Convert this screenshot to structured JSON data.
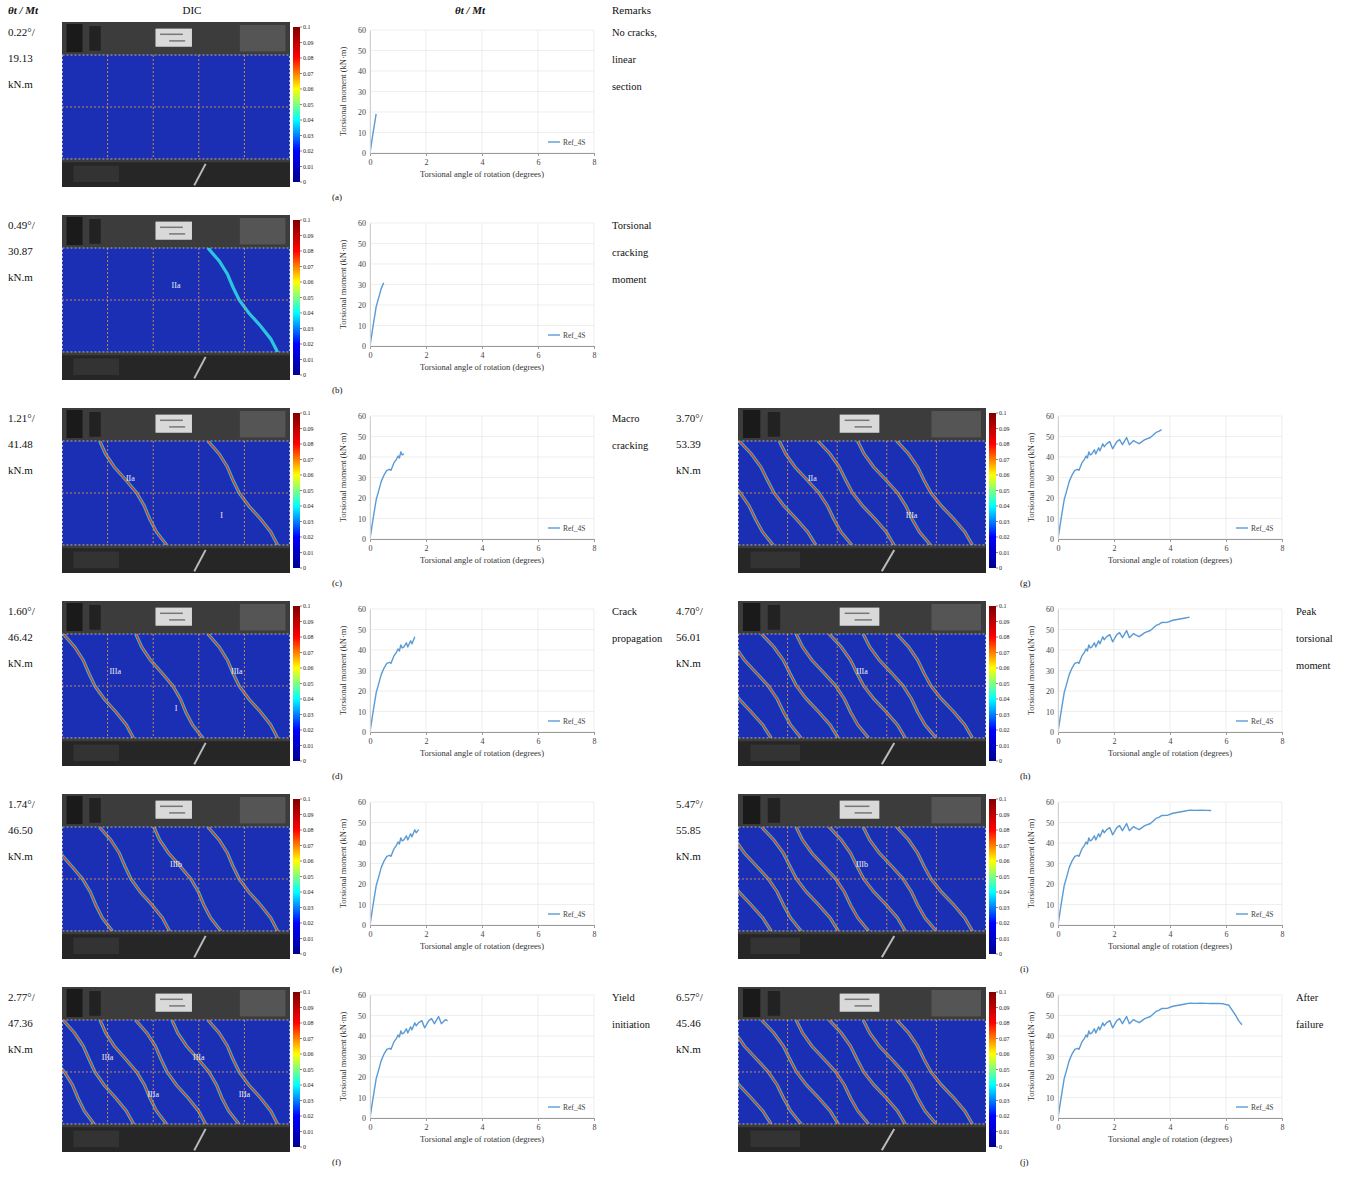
{
  "headers": [
    "θt / Mt",
    "DIC",
    "θt / Mt",
    "Remarks"
  ],
  "chart_data": [
    {
      "type": "line",
      "panel": "(a)",
      "angle_label": "0.22°/",
      "moment_label": "19.13",
      "unit_label": "kN.m",
      "remark": "No cracks, linear section",
      "xlabel": "Torsional angle of rotation (degrees)",
      "ylabel": "Torsional moment (kN·m)",
      "xlim": [
        0,
        8
      ],
      "ylim": [
        0,
        60
      ],
      "xticks": [
        0,
        2,
        4,
        6,
        8
      ],
      "yticks": [
        0,
        10,
        20,
        30,
        40,
        50,
        60
      ],
      "grid": true,
      "legend": "lower right",
      "x": [
        0,
        0.1,
        0.22
      ],
      "series": [
        {
          "name": "Ref_4S",
          "color": "#5b9bd5",
          "values": [
            0,
            9,
            19.13
          ]
        }
      ],
      "colorbar_range": [
        0,
        0.1
      ],
      "colorbar_ticks": [
        0,
        0.01,
        0.02,
        0.03,
        0.04,
        0.05,
        0.06,
        0.07,
        0.08,
        0.09,
        0.1
      ]
    },
    {
      "type": "line",
      "panel": "(b)",
      "angle_label": "0.49°/",
      "moment_label": "30.87",
      "unit_label": "kN.m",
      "remark": "Torsional cracking moment",
      "xlabel": "Torsional angle of rotation (degrees)",
      "ylabel": "Torsional moment (kN·m)",
      "xlim": [
        0,
        8
      ],
      "ylim": [
        0,
        60
      ],
      "xticks": [
        0,
        2,
        4,
        6,
        8
      ],
      "yticks": [
        0,
        10,
        20,
        30,
        40,
        50,
        60
      ],
      "grid": true,
      "legend": "lower right",
      "x": [
        0,
        0.1,
        0.22,
        0.3,
        0.4,
        0.49
      ],
      "series": [
        {
          "name": "Ref_4S",
          "color": "#5b9bd5",
          "values": [
            0,
            9,
            19.13,
            23,
            28,
            30.87
          ]
        }
      ],
      "colorbar_range": [
        0,
        0.1
      ],
      "colorbar_ticks": [
        0,
        0.01,
        0.02,
        0.03,
        0.04,
        0.05,
        0.06,
        0.07,
        0.08,
        0.09,
        0.1
      ],
      "crack_labels": [
        "IIa"
      ]
    },
    {
      "type": "line",
      "panel": "(c)",
      "angle_label": "1.21°/",
      "moment_label": "41.48",
      "unit_label": "kN.m",
      "remark": "Macro cracking",
      "xlabel": "Torsional angle of rotation (degrees)",
      "ylabel": "Torsional moment (kN·m)",
      "xlim": [
        0,
        8
      ],
      "ylim": [
        0,
        60
      ],
      "xticks": [
        0,
        2,
        4,
        6,
        8
      ],
      "yticks": [
        0,
        10,
        20,
        30,
        40,
        50,
        60
      ],
      "grid": true,
      "legend": "lower right",
      "x": [
        0,
        0.1,
        0.22,
        0.3,
        0.4,
        0.49,
        0.6,
        0.7,
        0.75,
        0.85,
        0.95,
        1.0,
        1.05,
        1.1,
        1.15,
        1.21
      ],
      "series": [
        {
          "name": "Ref_4S",
          "color": "#5b9bd5",
          "values": [
            0,
            9,
            19.13,
            23,
            28,
            30.87,
            33.5,
            34,
            33.5,
            37,
            39,
            40.5,
            39.5,
            42.5,
            41,
            41.48
          ]
        }
      ],
      "colorbar_range": [
        0,
        0.1
      ],
      "colorbar_ticks": [
        0,
        0.01,
        0.02,
        0.03,
        0.04,
        0.05,
        0.06,
        0.07,
        0.08,
        0.09,
        0.1
      ],
      "crack_labels": [
        "IIa",
        "I"
      ]
    },
    {
      "type": "line",
      "panel": "(d)",
      "angle_label": "1.60°/",
      "moment_label": "46.42",
      "unit_label": "kN.m",
      "remark": "Crack propagation",
      "xlabel": "Torsional angle of rotation (degrees)",
      "ylabel": "Torsional moment (kN·m)",
      "xlim": [
        0,
        8
      ],
      "ylim": [
        0,
        60
      ],
      "xticks": [
        0,
        2,
        4,
        6,
        8
      ],
      "yticks": [
        0,
        10,
        20,
        30,
        40,
        50,
        60
      ],
      "grid": true,
      "legend": "lower right",
      "x": [
        0,
        0.1,
        0.22,
        0.3,
        0.4,
        0.49,
        0.6,
        0.7,
        0.75,
        0.85,
        0.95,
        1.0,
        1.05,
        1.1,
        1.15,
        1.21,
        1.3,
        1.35,
        1.45,
        1.5,
        1.6
      ],
      "series": [
        {
          "name": "Ref_4S",
          "color": "#5b9bd5",
          "values": [
            0,
            9,
            19.13,
            23,
            28,
            30.87,
            33.5,
            34,
            33.5,
            37,
            39,
            40.5,
            39.5,
            42.5,
            41,
            41.48,
            43.5,
            41.5,
            44.5,
            43,
            46.42
          ]
        }
      ],
      "colorbar_range": [
        0,
        0.1
      ],
      "colorbar_ticks": [
        0,
        0.01,
        0.02,
        0.03,
        0.04,
        0.05,
        0.06,
        0.07,
        0.08,
        0.09,
        0.1
      ],
      "crack_labels": [
        "IIIa",
        "I",
        "IIIa"
      ]
    },
    {
      "type": "line",
      "panel": "(e)",
      "angle_label": "1.74°/",
      "moment_label": "46.50",
      "unit_label": "kN.m",
      "xlabel": "Torsional angle of rotation (degrees)",
      "ylabel": "Torsional moment (kN·m)",
      "xlim": [
        0,
        8
      ],
      "ylim": [
        0,
        60
      ],
      "xticks": [
        0,
        2,
        4,
        6,
        8
      ],
      "yticks": [
        0,
        10,
        20,
        30,
        40,
        50,
        60
      ],
      "grid": true,
      "legend": "lower right",
      "x": [
        0,
        0.1,
        0.22,
        0.3,
        0.4,
        0.49,
        0.6,
        0.7,
        0.75,
        0.85,
        0.95,
        1.0,
        1.05,
        1.1,
        1.15,
        1.21,
        1.3,
        1.35,
        1.45,
        1.5,
        1.6,
        1.65,
        1.74
      ],
      "series": [
        {
          "name": "Ref_4S",
          "color": "#5b9bd5",
          "values": [
            0,
            9,
            19.13,
            23,
            28,
            30.87,
            33.5,
            34,
            33.5,
            37,
            39,
            40.5,
            39.5,
            42.5,
            41,
            41.48,
            43.5,
            41.5,
            44.5,
            43,
            46.42,
            45,
            46.5
          ]
        }
      ],
      "colorbar_range": [
        0,
        0.1
      ],
      "colorbar_ticks": [
        0,
        0.01,
        0.02,
        0.03,
        0.04,
        0.05,
        0.06,
        0.07,
        0.08,
        0.09,
        0.1
      ],
      "crack_labels": [
        "IIIb"
      ]
    },
    {
      "type": "line",
      "panel": "(f)",
      "angle_label": "2.77°/",
      "moment_label": "47.36",
      "unit_label": "kN.m",
      "remark": "Yield initiation",
      "xlabel": "Torsional angle of rotation (degrees)",
      "ylabel": "Torsional moment (kN·m)",
      "xlim": [
        0,
        8
      ],
      "ylim": [
        0,
        60
      ],
      "xticks": [
        0,
        2,
        4,
        6,
        8
      ],
      "yticks": [
        0,
        10,
        20,
        30,
        40,
        50,
        60
      ],
      "grid": true,
      "legend": "lower right",
      "x": [
        0,
        0.1,
        0.22,
        0.3,
        0.4,
        0.49,
        0.6,
        0.7,
        0.75,
        0.85,
        0.95,
        1.0,
        1.05,
        1.1,
        1.15,
        1.21,
        1.3,
        1.35,
        1.45,
        1.5,
        1.6,
        1.65,
        1.74,
        1.85,
        1.95,
        2.1,
        2.2,
        2.3,
        2.45,
        2.55,
        2.7,
        2.77
      ],
      "series": [
        {
          "name": "Ref_4S",
          "color": "#5b9bd5",
          "values": [
            0,
            9,
            19.13,
            23,
            28,
            30.87,
            33.5,
            34,
            33.5,
            37,
            39,
            40.5,
            39.5,
            42.5,
            41,
            41.48,
            43.5,
            41.5,
            44.5,
            43,
            46.42,
            45,
            46.5,
            47.5,
            44,
            47.5,
            48.5,
            46,
            49.5,
            46,
            48,
            47.36
          ]
        }
      ],
      "colorbar_range": [
        0,
        0.1
      ],
      "colorbar_ticks": [
        0,
        0.01,
        0.02,
        0.03,
        0.04,
        0.05,
        0.06,
        0.07,
        0.08,
        0.09,
        0.1
      ],
      "crack_labels": [
        "IIIa",
        "IIIa",
        "IIIa",
        "IIIa"
      ]
    },
    {
      "type": "line",
      "panel": "(g)",
      "angle_label": "3.70°/",
      "moment_label": "53.39",
      "unit_label": "kN.m",
      "xlabel": "Torsional angle of rotation (degrees)",
      "ylabel": "Torsional moment (kN·m)",
      "xlim": [
        0,
        8
      ],
      "ylim": [
        0,
        60
      ],
      "xticks": [
        0,
        2,
        4,
        6,
        8
      ],
      "yticks": [
        0,
        10,
        20,
        30,
        40,
        50,
        60
      ],
      "grid": true,
      "legend": "lower right",
      "x": [
        0,
        0.1,
        0.22,
        0.3,
        0.4,
        0.49,
        0.6,
        0.7,
        0.75,
        0.85,
        0.95,
        1.0,
        1.05,
        1.1,
        1.15,
        1.21,
        1.3,
        1.35,
        1.45,
        1.5,
        1.6,
        1.65,
        1.74,
        1.85,
        1.95,
        2.1,
        2.2,
        2.3,
        2.45,
        2.55,
        2.7,
        2.77,
        2.9,
        3.1,
        3.3,
        3.5,
        3.6,
        3.7
      ],
      "series": [
        {
          "name": "Ref_4S",
          "color": "#5b9bd5",
          "values": [
            0,
            9,
            19.13,
            23,
            28,
            30.87,
            33.5,
            34,
            33.5,
            37,
            39,
            40.5,
            39.5,
            42.5,
            41,
            41.48,
            43.5,
            41.5,
            44.5,
            43,
            46.42,
            45,
            46.5,
            47.5,
            44,
            47.5,
            48.5,
            46,
            49.5,
            46,
            48,
            47.36,
            46.5,
            48.5,
            49.5,
            52,
            52.5,
            53.39
          ]
        }
      ],
      "colorbar_range": [
        0,
        0.1
      ],
      "colorbar_ticks": [
        0,
        0.01,
        0.02,
        0.03,
        0.04,
        0.05,
        0.06,
        0.07,
        0.08,
        0.09,
        0.1
      ],
      "crack_labels": [
        "IIa",
        "IIIa"
      ]
    },
    {
      "type": "line",
      "panel": "(h)",
      "angle_label": "4.70°/",
      "moment_label": "56.01",
      "unit_label": "kN.m",
      "remark": "Peak torsional moment",
      "xlabel": "Torsional angle of rotation (degrees)",
      "ylabel": "Torsional moment (kN·m)",
      "xlim": [
        0,
        8
      ],
      "ylim": [
        0,
        60
      ],
      "xticks": [
        0,
        2,
        4,
        6,
        8
      ],
      "yticks": [
        0,
        10,
        20,
        30,
        40,
        50,
        60
      ],
      "grid": true,
      "legend": "lower right",
      "x": [
        0,
        0.1,
        0.22,
        0.3,
        0.4,
        0.49,
        0.6,
        0.7,
        0.75,
        0.85,
        0.95,
        1.0,
        1.05,
        1.1,
        1.15,
        1.21,
        1.3,
        1.35,
        1.45,
        1.5,
        1.6,
        1.65,
        1.74,
        1.85,
        1.95,
        2.1,
        2.2,
        2.3,
        2.45,
        2.55,
        2.7,
        2.77,
        2.9,
        3.1,
        3.3,
        3.5,
        3.6,
        3.7,
        3.9,
        4.1,
        4.3,
        4.5,
        4.7
      ],
      "series": [
        {
          "name": "Ref_4S",
          "color": "#5b9bd5",
          "values": [
            0,
            9,
            19.13,
            23,
            28,
            30.87,
            33.5,
            34,
            33.5,
            37,
            39,
            40.5,
            39.5,
            42.5,
            41,
            41.48,
            43.5,
            41.5,
            44.5,
            43,
            46.42,
            45,
            46.5,
            47.5,
            44,
            47.5,
            48.5,
            46,
            49.5,
            46,
            48,
            47.36,
            46.5,
            48.5,
            49.5,
            52,
            52.5,
            53.39,
            53.5,
            54.5,
            55,
            55.5,
            56.01
          ]
        }
      ],
      "colorbar_range": [
        0,
        0.1
      ],
      "colorbar_ticks": [
        0,
        0.01,
        0.02,
        0.03,
        0.04,
        0.05,
        0.06,
        0.07,
        0.08,
        0.09,
        0.1
      ],
      "crack_labels": [
        "IIIa"
      ]
    },
    {
      "type": "line",
      "panel": "(i)",
      "angle_label": "5.47°/",
      "moment_label": "55.85",
      "unit_label": "kN.m",
      "xlabel": "Torsional angle of rotation (degrees)",
      "ylabel": "Torsional moment (kN·m)",
      "xlim": [
        0,
        8
      ],
      "ylim": [
        0,
        60
      ],
      "xticks": [
        0,
        2,
        4,
        6,
        8
      ],
      "yticks": [
        0,
        10,
        20,
        30,
        40,
        50,
        60
      ],
      "grid": true,
      "legend": "lower right",
      "x": [
        0,
        0.1,
        0.22,
        0.3,
        0.4,
        0.49,
        0.6,
        0.7,
        0.75,
        0.85,
        0.95,
        1.0,
        1.05,
        1.1,
        1.15,
        1.21,
        1.3,
        1.35,
        1.45,
        1.5,
        1.6,
        1.65,
        1.74,
        1.85,
        1.95,
        2.1,
        2.2,
        2.3,
        2.45,
        2.55,
        2.7,
        2.77,
        2.9,
        3.1,
        3.3,
        3.5,
        3.6,
        3.7,
        3.9,
        4.1,
        4.3,
        4.5,
        4.7,
        4.9,
        5.1,
        5.3,
        5.47
      ],
      "series": [
        {
          "name": "Ref_4S",
          "color": "#5b9bd5",
          "values": [
            0,
            9,
            19.13,
            23,
            28,
            30.87,
            33.5,
            34,
            33.5,
            37,
            39,
            40.5,
            39.5,
            42.5,
            41,
            41.48,
            43.5,
            41.5,
            44.5,
            43,
            46.42,
            45,
            46.5,
            47.5,
            44,
            47.5,
            48.5,
            46,
            49.5,
            46,
            48,
            47.36,
            46.5,
            48.5,
            49.5,
            52,
            52.5,
            53.39,
            53.5,
            54.5,
            55,
            55.5,
            56.01,
            55.9,
            55.95,
            55.9,
            55.85
          ]
        }
      ],
      "colorbar_range": [
        0,
        0.1
      ],
      "colorbar_ticks": [
        0,
        0.01,
        0.02,
        0.03,
        0.04,
        0.05,
        0.06,
        0.07,
        0.08,
        0.09,
        0.1
      ],
      "crack_labels": [
        "IIIb"
      ]
    },
    {
      "type": "line",
      "panel": "(j)",
      "angle_label": "6.57°/",
      "moment_label": "45.46",
      "unit_label": "kN.m",
      "remark": "After failure",
      "xlabel": "Torsional angle of rotation (degrees)",
      "ylabel": "Torsional moment (kN·m)",
      "xlim": [
        0,
        8
      ],
      "ylim": [
        0,
        60
      ],
      "xticks": [
        0,
        2,
        4,
        6,
        8
      ],
      "yticks": [
        0,
        10,
        20,
        30,
        40,
        50,
        60
      ],
      "grid": true,
      "legend": "lower right",
      "x": [
        0,
        0.1,
        0.22,
        0.3,
        0.4,
        0.49,
        0.6,
        0.7,
        0.75,
        0.85,
        0.95,
        1.0,
        1.05,
        1.1,
        1.15,
        1.21,
        1.3,
        1.35,
        1.45,
        1.5,
        1.6,
        1.65,
        1.74,
        1.85,
        1.95,
        2.1,
        2.2,
        2.3,
        2.45,
        2.55,
        2.7,
        2.77,
        2.9,
        3.1,
        3.3,
        3.5,
        3.6,
        3.7,
        3.9,
        4.1,
        4.3,
        4.5,
        4.7,
        4.9,
        5.1,
        5.3,
        5.47,
        5.7,
        5.9,
        6.1,
        6.2,
        6.35,
        6.45,
        6.57
      ],
      "series": [
        {
          "name": "Ref_4S",
          "color": "#5b9bd5",
          "values": [
            0,
            9,
            19.13,
            23,
            28,
            30.87,
            33.5,
            34,
            33.5,
            37,
            39,
            40.5,
            39.5,
            42.5,
            41,
            41.48,
            43.5,
            41.5,
            44.5,
            43,
            46.42,
            45,
            46.5,
            47.5,
            44,
            47.5,
            48.5,
            46,
            49.5,
            46,
            48,
            47.36,
            46.5,
            48.5,
            49.5,
            52,
            52.5,
            53.39,
            53.5,
            54.5,
            55,
            55.5,
            56.01,
            55.9,
            55.95,
            55.9,
            55.85,
            55.9,
            55.7,
            55,
            53,
            50,
            47.5,
            45.46
          ]
        }
      ],
      "colorbar_range": [
        0,
        0.1
      ],
      "colorbar_ticks": [
        0,
        0.01,
        0.02,
        0.03,
        0.04,
        0.05,
        0.06,
        0.07,
        0.08,
        0.09,
        0.1
      ]
    }
  ]
}
